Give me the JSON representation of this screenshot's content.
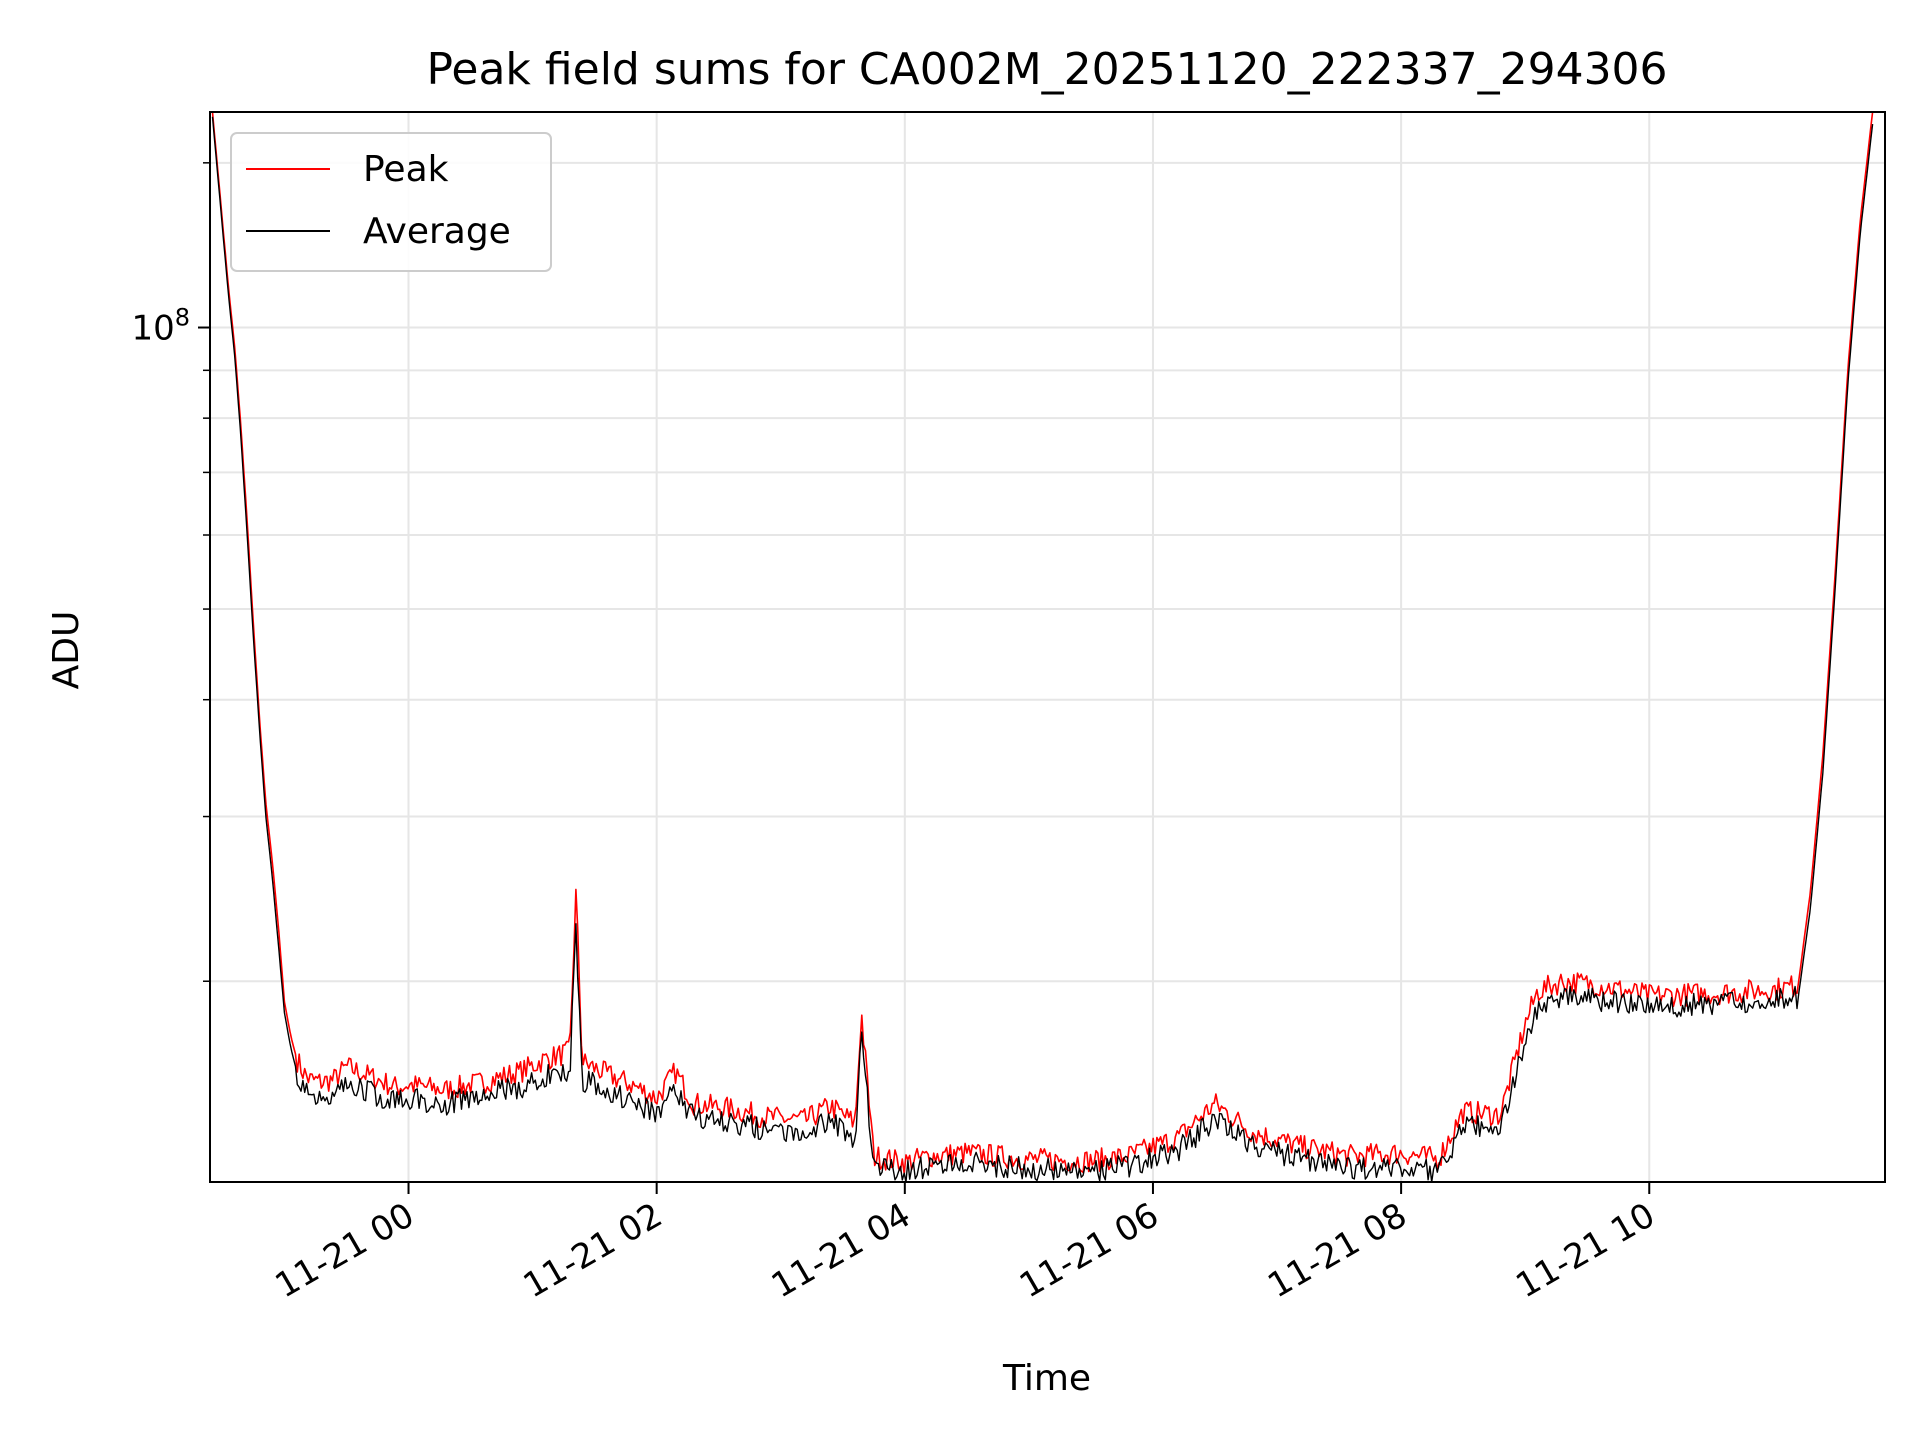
{
  "chart_data": {
    "type": "line",
    "title": "Peak field sums for CA002M_20251120_222337_294306",
    "xlabel": "Time",
    "ylabel": "ADU",
    "yscale": "log",
    "xlim": [
      -1.6,
      11.9
    ],
    "ylim": [
      12200000,
      170000000
    ],
    "x_ticks": [
      {
        "value": 0,
        "label": "11-21 00"
      },
      {
        "value": 2,
        "label": "11-21 02"
      },
      {
        "value": 4,
        "label": "11-21 04"
      },
      {
        "value": 6,
        "label": "11-21 06"
      },
      {
        "value": 8,
        "label": "11-21 08"
      },
      {
        "value": 10,
        "label": "11-21 10"
      }
    ],
    "y_major_ticks": [
      {
        "value": 100000000,
        "base": "10",
        "exponent": "8"
      }
    ],
    "y_minor_ticks": [
      20000000,
      30000000,
      40000000,
      50000000,
      60000000,
      70000000,
      80000000,
      90000000,
      150000000
    ],
    "grid": true,
    "legend_position": "top-left",
    "x_unit": "hours since 2025-11-21 00:00",
    "series": [
      {
        "name": "Peak",
        "color": "#ff0000",
        "x": [
          -1.58,
          -1.5,
          -1.45,
          -1.4,
          -1.35,
          -1.3,
          -1.25,
          -1.2,
          -1.15,
          -1.1,
          -1.05,
          -1.0,
          -0.95,
          -0.9,
          -0.85,
          -0.8,
          -0.7,
          -0.6,
          -0.5,
          -0.4,
          -0.3,
          -0.2,
          -0.1,
          0.0,
          0.3,
          0.6,
          0.9,
          1.1,
          1.3,
          1.35,
          1.4,
          1.6,
          1.8,
          2.0,
          2.15,
          2.3,
          2.6,
          2.9,
          3.2,
          3.4,
          3.6,
          3.65,
          3.75,
          4.0,
          4.2,
          4.5,
          5.0,
          5.5,
          5.8,
          6.2,
          6.5,
          6.8,
          7.2,
          7.6,
          8.0,
          8.3,
          8.5,
          8.8,
          9.0,
          9.1,
          9.3,
          9.6,
          10.0,
          10.5,
          11.0,
          11.2,
          11.3,
          11.4,
          11.5,
          11.6,
          11.7,
          11.8
        ],
        "values": [
          170000000,
          130000000,
          110000000,
          95000000,
          78000000,
          62000000,
          48000000,
          38000000,
          31000000,
          27000000,
          23000000,
          19000000,
          17500000,
          16500000,
          16000000,
          15700000,
          15600000,
          15700000,
          16200000,
          16000000,
          15800000,
          15600000,
          15400000,
          15500000,
          15300000,
          15600000,
          16000000,
          16500000,
          16800000,
          25000000,
          16400000,
          15900000,
          15500000,
          15000000,
          16000000,
          14800000,
          14600000,
          14300000,
          14200000,
          14700000,
          14100000,
          18500000,
          13000000,
          12800000,
          13000000,
          13100000,
          12900000,
          12850000,
          13000000,
          13600000,
          14800000,
          13800000,
          13300000,
          13000000,
          13100000,
          12900000,
          14500000,
          14400000,
          18000000,
          19500000,
          20000000,
          19800000,
          19300000,
          19400000,
          19600000,
          19800000,
          25000000,
          35000000,
          55000000,
          90000000,
          130000000,
          170000000
        ]
      },
      {
        "name": "Average",
        "color": "#000000",
        "x": [
          -1.58,
          -1.5,
          -1.45,
          -1.4,
          -1.35,
          -1.3,
          -1.25,
          -1.2,
          -1.15,
          -1.1,
          -1.05,
          -1.0,
          -0.95,
          -0.9,
          -0.85,
          -0.8,
          -0.7,
          -0.6,
          -0.5,
          -0.4,
          -0.3,
          -0.2,
          -0.1,
          0.0,
          0.3,
          0.6,
          0.9,
          1.1,
          1.3,
          1.35,
          1.4,
          1.6,
          1.8,
          2.0,
          2.15,
          2.3,
          2.6,
          2.9,
          3.2,
          3.4,
          3.6,
          3.65,
          3.75,
          4.0,
          4.2,
          4.5,
          5.0,
          5.5,
          5.8,
          6.2,
          6.5,
          6.8,
          7.2,
          7.6,
          8.0,
          8.3,
          8.5,
          8.8,
          9.0,
          9.1,
          9.3,
          9.6,
          10.0,
          10.5,
          11.0,
          11.2,
          11.3,
          11.4,
          11.5,
          11.6,
          11.7,
          11.8
        ],
        "values": [
          168000000,
          128000000,
          108000000,
          93000000,
          76000000,
          60000000,
          46500000,
          37000000,
          30000000,
          26000000,
          22000000,
          18500000,
          17000000,
          16000000,
          15500000,
          15200000,
          15100000,
          15200000,
          15600000,
          15400000,
          15200000,
          15000000,
          14900000,
          15000000,
          14800000,
          15100000,
          15400000,
          15800000,
          16000000,
          23000000,
          15700000,
          15300000,
          14900000,
          14500000,
          15300000,
          14300000,
          14100000,
          13900000,
          13800000,
          14200000,
          13600000,
          17500000,
          12700000,
          12500000,
          12700000,
          12800000,
          12600000,
          12550000,
          12700000,
          13200000,
          14200000,
          13300000,
          12900000,
          12600000,
          12700000,
          12500000,
          14000000,
          13900000,
          17200000,
          18800000,
          19300000,
          19100000,
          18800000,
          18900000,
          19100000,
          19200000,
          24000000,
          33500000,
          53000000,
          87000000,
          126000000,
          165000000
        ]
      }
    ]
  }
}
